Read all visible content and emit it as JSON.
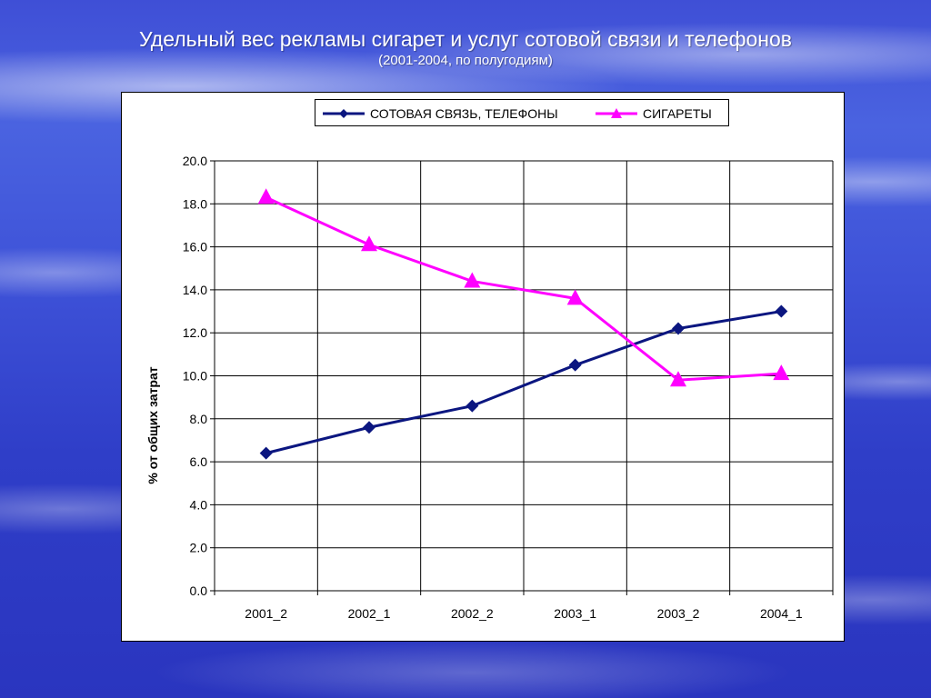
{
  "slide": {
    "title": "Удельный вес рекламы сигарет и услуг сотовой связи и телефонов",
    "subtitle": "(2001-2004, по полугодиям)"
  },
  "chart_data": {
    "type": "line",
    "categories": [
      "2001_2",
      "2002_1",
      "2002_2",
      "2003_1",
      "2003_2",
      "2004_1"
    ],
    "series": [
      {
        "name": "СОТОВАЯ СВЯЗЬ, ТЕЛЕФОНЫ",
        "values": [
          6.4,
          7.6,
          8.6,
          10.5,
          12.2,
          13.0
        ],
        "color": "#0b1680",
        "marker": "diamond"
      },
      {
        "name": "СИГАРЕТЫ",
        "values": [
          18.3,
          16.1,
          14.4,
          13.6,
          9.8,
          10.1
        ],
        "color": "#ff00ff",
        "marker": "triangle"
      }
    ],
    "ylabel": "% от общих затрат",
    "xlabel": "",
    "ylim": [
      0,
      20
    ],
    "yticks": [
      "0.0",
      "2.0",
      "4.0",
      "6.0",
      "8.0",
      "10.0",
      "12.0",
      "14.0",
      "16.0",
      "18.0",
      "20.0"
    ],
    "grid": true,
    "legend_position": "top"
  }
}
